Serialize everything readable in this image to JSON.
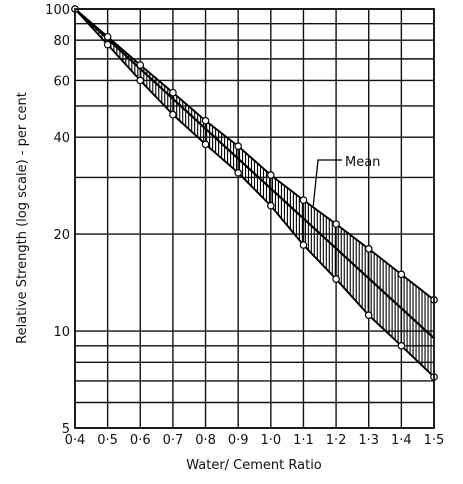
{
  "chart_data": {
    "type": "line",
    "title": "",
    "xlabel": "Water/ Cement Ratio",
    "ylabel": "Relative Strength (log scale) - per cent",
    "x_tick_labels": [
      "0·4",
      "0·5",
      "0·6",
      "0·7",
      "0·8",
      "0·9",
      "1·0",
      "1·1",
      "1·2",
      "1·3",
      "1·4",
      "1·5"
    ],
    "x_ticks": [
      0.4,
      0.5,
      0.6,
      0.7,
      0.8,
      0.9,
      1.0,
      1.1,
      1.2,
      1.3,
      1.4,
      1.5
    ],
    "y_tick_labels": [
      "5",
      "10",
      "20",
      "40",
      "60",
      "80",
      "100"
    ],
    "y_ticks": [
      5,
      10,
      20,
      40,
      60,
      80,
      100
    ],
    "y_gridlines": [
      5,
      6,
      7,
      8,
      9,
      10,
      20,
      30,
      40,
      50,
      60,
      70,
      80,
      90,
      100
    ],
    "xlim": [
      0.4,
      1.5
    ],
    "ylim": [
      5,
      100
    ],
    "y_scale": "log",
    "grid": true,
    "series": [
      {
        "role": "upper",
        "x": [
          0.4,
          0.5,
          0.6,
          0.7,
          0.8,
          0.9,
          1.0,
          1.1,
          1.2,
          1.3,
          1.4,
          1.5
        ],
        "values": [
          100,
          82,
          67,
          55,
          45,
          37.5,
          30.5,
          25.5,
          21.5,
          18,
          15,
          12.5
        ]
      },
      {
        "role": "mean",
        "name": "Mean",
        "x": [
          0.4,
          1.5
        ],
        "values": [
          100,
          9.5
        ]
      },
      {
        "role": "lower",
        "x": [
          0.4,
          0.5,
          0.6,
          0.7,
          0.8,
          0.9,
          1.0,
          1.1,
          1.2,
          1.3,
          1.4,
          1.5
        ],
        "values": [
          100,
          77.5,
          60,
          47,
          38,
          31,
          24.5,
          18.5,
          14.5,
          11.2,
          9,
          7.2
        ]
      }
    ],
    "annotations": [
      {
        "text": "Mean",
        "points_to_x": 1.13,
        "points_to_y": 24.5
      }
    ]
  }
}
